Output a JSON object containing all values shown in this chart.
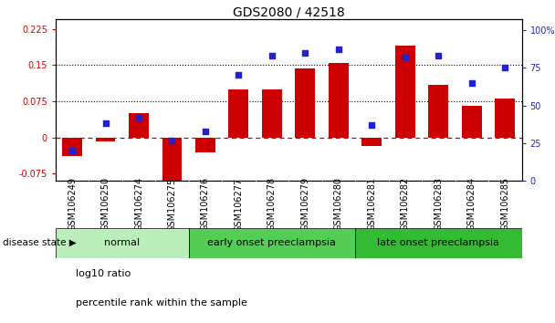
{
  "title": "GDS2080 / 42518",
  "samples": [
    "GSM106249",
    "GSM106250",
    "GSM106274",
    "GSM106275",
    "GSM106276",
    "GSM106277",
    "GSM106278",
    "GSM106279",
    "GSM106280",
    "GSM106281",
    "GSM106282",
    "GSM106283",
    "GSM106284",
    "GSM106285"
  ],
  "log10_ratio": [
    -0.038,
    -0.008,
    0.05,
    -0.105,
    -0.03,
    0.1,
    0.1,
    0.143,
    0.155,
    -0.018,
    0.19,
    0.11,
    0.065,
    0.08
  ],
  "percentile_rank": [
    20,
    38,
    42,
    27,
    33,
    70,
    83,
    85,
    87,
    37,
    82,
    83,
    65,
    75
  ],
  "groups": [
    {
      "label": "normal",
      "start": 0,
      "end": 4,
      "color": "#bbeebb"
    },
    {
      "label": "early onset preeclampsia",
      "start": 4,
      "end": 9,
      "color": "#55cc55"
    },
    {
      "label": "late onset preeclampsia",
      "start": 9,
      "end": 14,
      "color": "#33bb33"
    }
  ],
  "bar_color": "#cc0000",
  "dot_color": "#2222cc",
  "ylim_left": [
    -0.09,
    0.245
  ],
  "ylim_right": [
    0,
    107
  ],
  "yticks_left": [
    -0.075,
    0,
    0.075,
    0.15,
    0.225
  ],
  "yticks_right": [
    0,
    25,
    50,
    75,
    100
  ],
  "hlines": [
    0.075,
    0.15
  ],
  "zero_line_color": "#cc0000",
  "background_color": "#ffffff",
  "legend_labels": [
    "log10 ratio",
    "percentile rank within the sample"
  ],
  "disease_state_label": "disease state",
  "title_fontsize": 10,
  "tick_fontsize": 7,
  "label_fontsize": 8,
  "xticklabel_fontsize": 7,
  "bar_width": 0.6
}
